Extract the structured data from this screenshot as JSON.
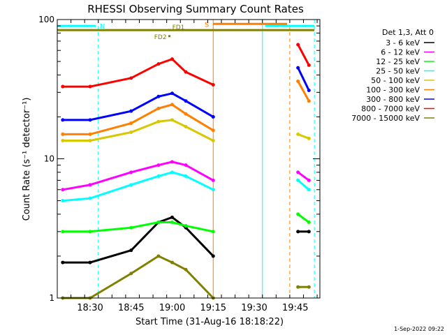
{
  "chart_data": {
    "type": "line",
    "title": "RHESSI Observing Summary Count Rates",
    "xlabel": "Start Time (31-Aug-16 18:18:22)",
    "ylabel": "Count Rate (s⁻¹ detector⁻¹)",
    "y_scale": "log",
    "ylim": [
      1,
      100
    ],
    "xlim": [
      "18:18",
      "19:54"
    ],
    "x_ticks": [
      "18:30",
      "18:45",
      "19:00",
      "19:15",
      "19:30",
      "19:45"
    ],
    "y_ticks": [
      "1",
      "10",
      "100"
    ],
    "legend_title": "Det 1,3, Att 0",
    "legend_position": "right",
    "series": [
      {
        "name": "3 - 6 keV",
        "color": "#000000",
        "x": [
          "18:20",
          "18:30",
          "18:45",
          "18:55",
          "19:00",
          "19:05",
          "19:15",
          "19:46",
          "19:50"
        ],
        "y": [
          1.8,
          1.8,
          2.2,
          3.5,
          3.8,
          3.2,
          2.0,
          3.0,
          3.0
        ]
      },
      {
        "name": "6 - 12 keV",
        "color": "#ff00ff",
        "x": [
          "18:20",
          "18:30",
          "18:45",
          "18:55",
          "19:00",
          "19:05",
          "19:15",
          "19:46",
          "19:50"
        ],
        "y": [
          6.0,
          6.5,
          8.0,
          9.0,
          9.5,
          9.0,
          7.0,
          8.0,
          7.0
        ]
      },
      {
        "name": "12 - 25 keV",
        "color": "#00ff00",
        "x": [
          "18:20",
          "18:30",
          "18:45",
          "18:55",
          "19:00",
          "19:05",
          "19:15",
          "19:46",
          "19:50"
        ],
        "y": [
          3.0,
          3.0,
          3.2,
          3.5,
          3.5,
          3.3,
          3.0,
          4.0,
          3.5
        ]
      },
      {
        "name": "25 - 50 keV",
        "color": "#00ffff",
        "x": [
          "18:20",
          "18:30",
          "18:45",
          "18:55",
          "19:00",
          "19:05",
          "19:15",
          "19:46",
          "19:50"
        ],
        "y": [
          5.0,
          5.2,
          6.5,
          7.5,
          8.0,
          7.5,
          6.0,
          7.0,
          6.0
        ]
      },
      {
        "name": "50 - 100 keV",
        "color": "#d8c800",
        "x": [
          "18:20",
          "18:30",
          "18:45",
          "18:55",
          "19:00",
          "19:05",
          "19:15",
          "19:46",
          "19:50"
        ],
        "y": [
          13.5,
          13.5,
          15.5,
          18.5,
          19.0,
          17.0,
          13.5,
          15.0,
          14.0
        ]
      },
      {
        "name": "100 - 300 keV",
        "color": "#ff7f00",
        "x": [
          "18:20",
          "18:30",
          "18:45",
          "18:55",
          "19:00",
          "19:05",
          "19:15",
          "19:46",
          "19:50"
        ],
        "y": [
          15.0,
          15.0,
          18.0,
          23.0,
          24.5,
          21.0,
          16.0,
          36.0,
          26.0
        ]
      },
      {
        "name": "300 - 800 keV",
        "color": "#0000ff",
        "x": [
          "18:20",
          "18:30",
          "18:45",
          "18:55",
          "19:00",
          "19:05",
          "19:15",
          "19:46",
          "19:50"
        ],
        "y": [
          19.0,
          19.0,
          22.0,
          28.0,
          29.5,
          26.0,
          20.0,
          45.0,
          31.0
        ]
      },
      {
        "name": "800 - 7000 keV",
        "color": "#ff0000",
        "x": [
          "18:20",
          "18:30",
          "18:45",
          "18:55",
          "19:00",
          "19:05",
          "19:15",
          "19:46",
          "19:50"
        ],
        "y": [
          33.0,
          33.0,
          38.0,
          48.0,
          52.0,
          42.0,
          34.0,
          66.0,
          47.0
        ]
      },
      {
        "name": "7000 - 15000 keV",
        "color": "#808000",
        "x": [
          "18:20",
          "18:30",
          "18:45",
          "18:55",
          "19:00",
          "19:05",
          "19:15",
          "19:46",
          "19:50"
        ],
        "y": [
          1.0,
          1.0,
          1.5,
          2.0,
          1.8,
          1.6,
          1.0,
          1.2,
          1.2
        ]
      }
    ],
    "annotations": {
      "bars": [
        {
          "label": "N",
          "color": "#00ffff",
          "x_start": "18:18",
          "x_end": "18:32",
          "y": 90
        },
        {
          "label": "",
          "color": "#00ffff",
          "x_start": "19:34",
          "x_end": "19:52",
          "y": 90
        },
        {
          "label": "S",
          "color": "#ff7f00",
          "x_start": "19:15",
          "x_end": "19:42",
          "y": 93
        },
        {
          "label": "",
          "color": "#808000",
          "x_start": "18:18",
          "x_end": "19:52",
          "y": 84
        }
      ],
      "markers": [
        {
          "label": "FD1",
          "color": "#808000",
          "x": "18:59",
          "y": 84
        },
        {
          "label": "FD2",
          "color": "#808000",
          "x": "18:59",
          "y": 76
        }
      ],
      "vlines": [
        {
          "color": "#00ffff",
          "x": "18:33",
          "dashed": true
        },
        {
          "color": "#ff7f00",
          "x": "19:15",
          "dashed": false
        },
        {
          "color": "#00ffff",
          "x": "19:33",
          "dashed": false
        },
        {
          "color": "#ff7f00",
          "x": "19:43",
          "dashed": true
        },
        {
          "color": "#00ffff",
          "x": "19:52",
          "dashed": true
        }
      ]
    },
    "grid": false
  },
  "footer": {
    "date_stamp": "1-Sep-2022 09:22"
  }
}
